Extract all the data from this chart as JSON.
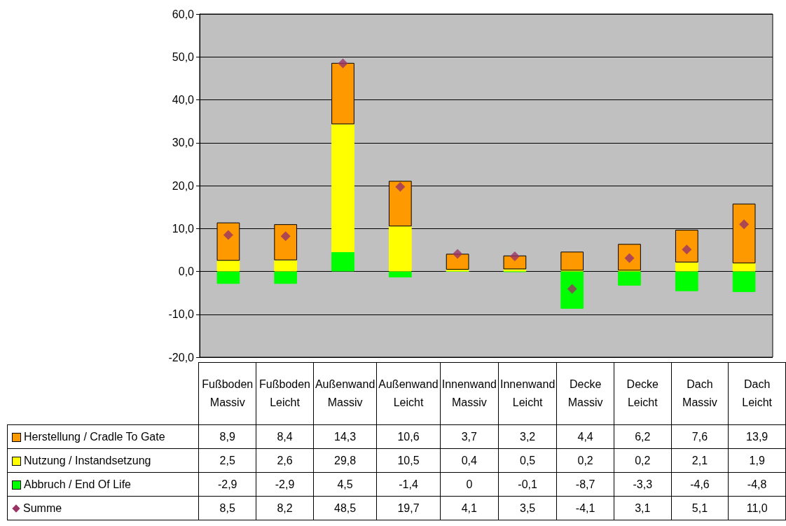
{
  "chart_data": {
    "type": "bar",
    "stacked": true,
    "data_labels": true,
    "legend": "bottom",
    "grid": "y",
    "categories": [
      "Fußboden Massiv",
      "Fußboden Leicht",
      "Außenwand Massiv",
      "Außenwand Leicht",
      "Innenwand Massiv",
      "Innenwand Leicht",
      "Decke Massiv",
      "Decke Leicht",
      "Dach Massiv",
      "Dach Leicht"
    ],
    "series": [
      {
        "name": "Abbruch / End Of Life",
        "color": "#00ff00",
        "values": [
          -2.9,
          -2.9,
          4.5,
          -1.4,
          0,
          -0.1,
          -8.7,
          -3.3,
          -4.6,
          -4.8
        ],
        "value_labels": [
          "-2,9",
          "-2,9",
          "4,5",
          "-1,4",
          "0",
          "-0,1",
          "-8,7",
          "-3,3",
          "-4,6",
          "-4,8"
        ]
      },
      {
        "name": "Nutzung / Instandsetzung",
        "color": "#ffff00",
        "values": [
          2.5,
          2.6,
          29.8,
          10.5,
          0.4,
          0.5,
          0.2,
          0.2,
          2.1,
          1.9
        ],
        "value_labels": [
          "2,5",
          "2,6",
          "29,8",
          "10,5",
          "0,4",
          "0,5",
          "0,2",
          "0,2",
          "2,1",
          "1,9"
        ]
      },
      {
        "name": "Herstellung / Cradle To Gate",
        "color": "#ff9900",
        "values": [
          8.9,
          8.4,
          14.3,
          10.6,
          3.7,
          3.2,
          4.4,
          6.2,
          7.6,
          13.9
        ],
        "value_labels": [
          "8,9",
          "8,4",
          "14,3",
          "10,6",
          "3,7",
          "3,2",
          "4,4",
          "6,2",
          "7,6",
          "13,9"
        ]
      },
      {
        "name": "Summe",
        "type": "scatter",
        "marker": "diamond",
        "color": "#993366",
        "x": [
          "Fußboden Massiv",
          "Fußboden Leicht",
          "Außenwand Massiv",
          "Außenwand Leicht",
          "Innenwand Massiv",
          "Innenwand Leicht",
          "Decke Massiv",
          "Decke Leicht",
          "Dach Massiv",
          "Dach Leicht"
        ],
        "values": [
          8.5,
          8.2,
          48.5,
          19.7,
          4.1,
          3.5,
          -4.1,
          3.1,
          5.1,
          11.0
        ],
        "value_labels": [
          "8,5",
          "8,2",
          "48,5",
          "19,7",
          "4,1",
          "3,5",
          "-4,1",
          "3,1",
          "5,1",
          "11,0"
        ]
      }
    ],
    "ylim": [
      -20,
      60
    ],
    "yticks": [
      {
        "value": -20,
        "label": "-20,0"
      },
      {
        "value": -10,
        "label": "-10,0"
      },
      {
        "value": 0,
        "label": "0,0"
      },
      {
        "value": 10,
        "label": "10,0"
      },
      {
        "value": 20,
        "label": "20,0"
      },
      {
        "value": 30,
        "label": "30,0"
      },
      {
        "value": 40,
        "label": "40,0"
      },
      {
        "value": 50,
        "label": "50,0"
      },
      {
        "value": 60,
        "label": "60,0"
      }
    ]
  }
}
